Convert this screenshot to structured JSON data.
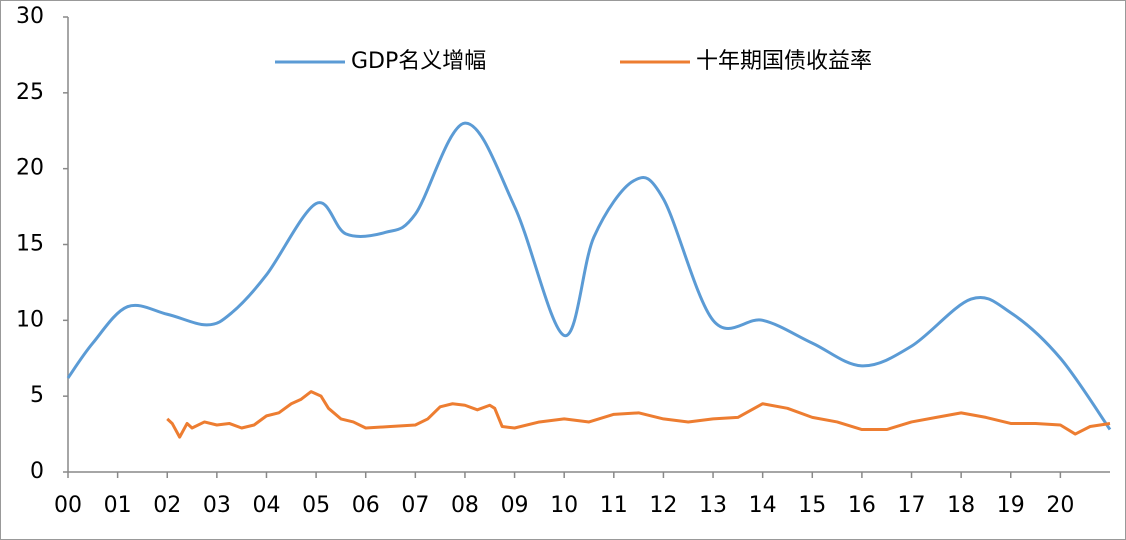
{
  "chart_data": {
    "type": "line",
    "x_gdp": [
      0,
      0.5,
      1.2,
      2,
      2.8,
      3.3,
      4,
      5,
      5.6,
      6.4,
      7,
      8,
      9,
      10,
      10.6,
      11.4,
      12,
      13,
      14,
      15,
      16,
      17,
      18.2,
      19,
      20,
      21
    ],
    "series": [
      {
        "name": "GDP名义增幅",
        "color": "#5b9bd5",
        "x": [
          0,
          0.5,
          1.2,
          2,
          2.8,
          3.3,
          4,
          5,
          5.6,
          6.4,
          7,
          8,
          9,
          10,
          10.6,
          11.4,
          12,
          13,
          14,
          15,
          16,
          17,
          18.2,
          19,
          20,
          21
        ],
        "values": [
          6.2,
          8.5,
          10.9,
          10.4,
          9.7,
          10.5,
          13,
          17.7,
          15.7,
          15.8,
          17,
          23,
          17.5,
          9,
          15.5,
          19.2,
          18,
          10,
          10,
          8.5,
          7,
          8.3,
          11.4,
          10.5,
          7.5,
          2.8
        ]
      },
      {
        "name": "十年期国债收益率",
        "color": "#ed7d31",
        "x": [
          2,
          2.1,
          2.25,
          2.4,
          2.5,
          2.75,
          3,
          3.25,
          3.5,
          3.75,
          4,
          4.25,
          4.5,
          4.7,
          4.9,
          5.1,
          5.25,
          5.5,
          5.75,
          6,
          6.5,
          7,
          7.25,
          7.5,
          7.75,
          8,
          8.25,
          8.5,
          8.6,
          8.75,
          9,
          9.5,
          10,
          10.5,
          11,
          11.5,
          12,
          12.5,
          13,
          13.5,
          14,
          14.5,
          15,
          15.5,
          16,
          16.5,
          17,
          17.5,
          18,
          18.5,
          19,
          19.5,
          20,
          20.3,
          20.6,
          21
        ],
        "values": [
          3.5,
          3.2,
          2.3,
          3.2,
          2.9,
          3.3,
          3.1,
          3.2,
          2.9,
          3.1,
          3.7,
          3.9,
          4.5,
          4.8,
          5.3,
          5.0,
          4.2,
          3.5,
          3.3,
          2.9,
          3.0,
          3.1,
          3.5,
          4.3,
          4.5,
          4.4,
          4.1,
          4.4,
          4.2,
          3.0,
          2.9,
          3.3,
          3.5,
          3.3,
          3.8,
          3.9,
          3.5,
          3.3,
          3.5,
          3.6,
          4.5,
          4.2,
          3.6,
          3.3,
          2.8,
          2.8,
          3.3,
          3.6,
          3.9,
          3.6,
          3.2,
          3.2,
          3.1,
          2.5,
          3.0,
          3.2
        ]
      }
    ],
    "xlim": [
      0,
      21
    ],
    "xticks": [
      {
        "value": 0,
        "label": "00"
      },
      {
        "value": 1,
        "label": "01"
      },
      {
        "value": 2,
        "label": "02"
      },
      {
        "value": 3,
        "label": "03"
      },
      {
        "value": 4,
        "label": "04"
      },
      {
        "value": 5,
        "label": "05"
      },
      {
        "value": 6,
        "label": "06"
      },
      {
        "value": 7,
        "label": "07"
      },
      {
        "value": 8,
        "label": "08"
      },
      {
        "value": 9,
        "label": "09"
      },
      {
        "value": 10,
        "label": "10"
      },
      {
        "value": 11,
        "label": "11"
      },
      {
        "value": 12,
        "label": "12"
      },
      {
        "value": 13,
        "label": "13"
      },
      {
        "value": 14,
        "label": "14"
      },
      {
        "value": 15,
        "label": "15"
      },
      {
        "value": 16,
        "label": "16"
      },
      {
        "value": 17,
        "label": "17"
      },
      {
        "value": 18,
        "label": "18"
      },
      {
        "value": 19,
        "label": "19"
      },
      {
        "value": 20,
        "label": "20"
      }
    ],
    "ylim": [
      0,
      30
    ],
    "yticks": [
      0,
      5,
      10,
      15,
      20,
      25,
      30
    ],
    "grid": false,
    "legend": "top"
  }
}
